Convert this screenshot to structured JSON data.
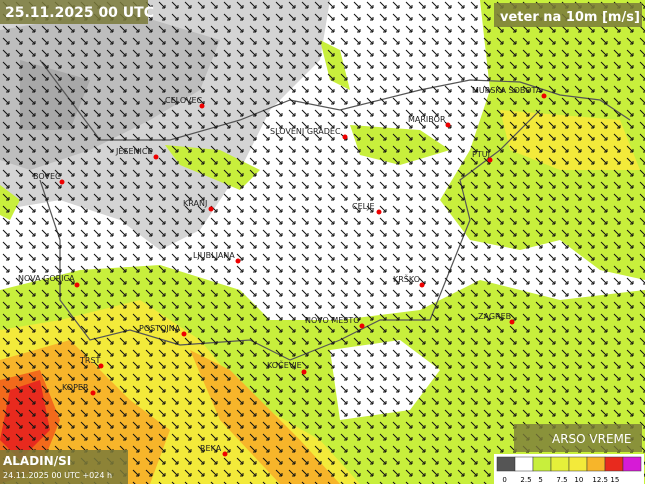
{
  "header": {
    "title": "25.11.2025 00 UTC",
    "parameter": "veter na 10m [m/s]"
  },
  "cities": [
    "CELOVEC",
    "SLOVENJ GRADEC",
    "MURSKA SOBOTA",
    "MARIBOR",
    "JESENICE",
    "PTUJ",
    "BOVEC",
    "KRANJ",
    "CELJE",
    "LJUBLJANA",
    "KRŠKO",
    "NOVA GORICA",
    "ZAGREB",
    "POSTOJNA",
    "NOVO MESTO",
    "KOČEVJE",
    "TRST",
    "KOPER",
    "REKA"
  ],
  "footer": {
    "model": "ALADIN/SI",
    "run": "24.11.2025 00 UTC +024 h",
    "brand": "ARSO VREME"
  },
  "legend": {
    "labels": [
      0,
      2.5,
      5,
      7.5,
      10,
      12.5,
      15
    ]
  }
}
